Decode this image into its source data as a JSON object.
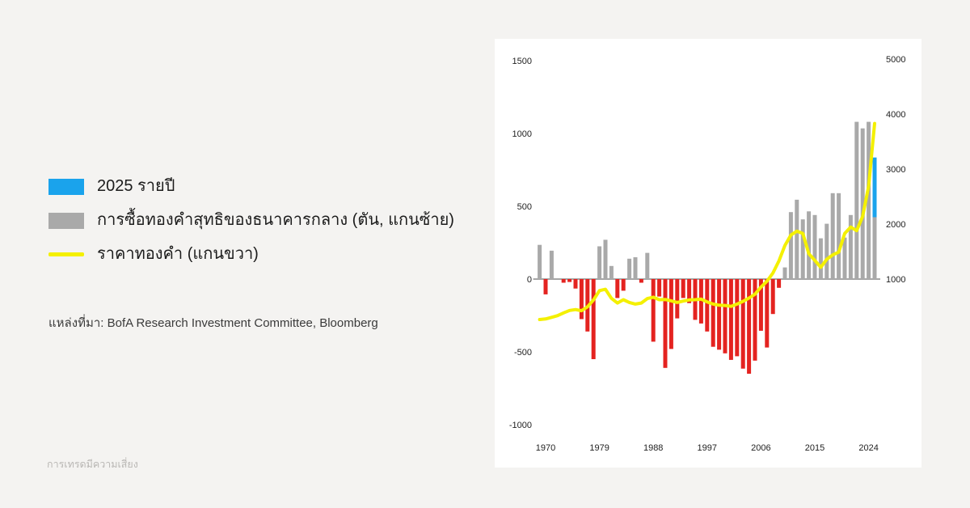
{
  "page": {
    "background_color": "#f4f3f1",
    "panel_background_color": "#ffffff",
    "source_line": "แหล่งที่มา: BofA Research Investment Committee, Bloomberg",
    "footer_note": "การเทรดมีความเสี่ยง"
  },
  "legend": {
    "items": [
      {
        "label": "2025 รายปี",
        "color": "#1AA3EC",
        "swatch_type": "bar"
      },
      {
        "label": "การซื้อทองคำสุทธิของธนาคารกลาง (ตัน, แกนซ้าย)",
        "color": "#A9A9A9",
        "swatch_type": "bar"
      },
      {
        "label": "ราคาทองคำ (แกนขวา)",
        "color": "#F4F000",
        "swatch_type": "line"
      }
    ]
  },
  "chart_data": {
    "type": "bar+line",
    "title": "",
    "grid": false,
    "legend_position": "outside-left",
    "categories": [
      1969,
      1970,
      1971,
      1972,
      1973,
      1974,
      1975,
      1976,
      1977,
      1978,
      1979,
      1980,
      1981,
      1982,
      1983,
      1984,
      1985,
      1986,
      1987,
      1988,
      1989,
      1990,
      1991,
      1992,
      1993,
      1994,
      1995,
      1996,
      1997,
      1998,
      1999,
      2000,
      2001,
      2002,
      2003,
      2004,
      2005,
      2006,
      2007,
      2008,
      2009,
      2010,
      2011,
      2012,
      2013,
      2014,
      2015,
      2016,
      2017,
      2018,
      2019,
      2020,
      2021,
      2022,
      2023,
      2024,
      2025
    ],
    "series": [
      {
        "name": "central-bank-net-gold-purchases",
        "label_th": "การซื้อทองคำสุทธิของธนาคารกลาง (ตัน, แกนซ้าย)",
        "type": "bar",
        "axis": "left",
        "unit": "tonnes",
        "values": [
          235,
          -105,
          195,
          0,
          -25,
          -20,
          -65,
          -275,
          -360,
          -550,
          225,
          270,
          90,
          -130,
          -80,
          140,
          150,
          -25,
          180,
          -430,
          -120,
          -610,
          -480,
          -270,
          -130,
          -165,
          -280,
          -305,
          -360,
          -465,
          -485,
          -510,
          -555,
          -530,
          -615,
          -650,
          -560,
          -355,
          -470,
          -240,
          -60,
          80,
          460,
          545,
          410,
          465,
          440,
          280,
          380,
          590,
          590,
          285,
          440,
          1080,
          1035,
          1080,
          835
        ]
      },
      {
        "name": "gold-price",
        "label_th": "ราคาทองคำ (แกนขวา)",
        "type": "line",
        "axis": "right",
        "unit": "usd",
        "values": [
          265,
          275,
          305,
          335,
          385,
          430,
          445,
          425,
          495,
          620,
          790,
          815,
          650,
          565,
          625,
          575,
          545,
          565,
          645,
          670,
          625,
          630,
          605,
          575,
          600,
          620,
          625,
          635,
          585,
          545,
          525,
          520,
          505,
          545,
          595,
          655,
          725,
          855,
          960,
          1110,
          1330,
          1610,
          1800,
          1870,
          1830,
          1460,
          1340,
          1215,
          1360,
          1440,
          1490,
          1830,
          1945,
          1880,
          2140,
          2690,
          3830
        ]
      }
    ],
    "annualized_2025": {
      "year": 2025,
      "actual": 425,
      "annualized_total": 835,
      "note_th": "2025 รายปี"
    },
    "colors": {
      "bar_positive": "#A9A9A9",
      "bar_negative": "#E42320",
      "bar_2025": "#1AA3EC",
      "line": "#F4F000",
      "axis_line": "#9A9A9A",
      "tick_text": "#222222"
    },
    "left_axis": {
      "ticks": [
        1500,
        1000,
        500,
        0,
        -500,
        -1000
      ],
      "range": [
        -1000,
        1500
      ]
    },
    "right_axis": {
      "ticks": [
        5000,
        4000,
        3000,
        2000,
        1000
      ],
      "alignment": "1000 aligns with left 0; 5000 aligns with left 1500"
    },
    "x_axis": {
      "ticks": [
        1970,
        1979,
        1988,
        1997,
        2006,
        2015,
        2024
      ]
    }
  }
}
